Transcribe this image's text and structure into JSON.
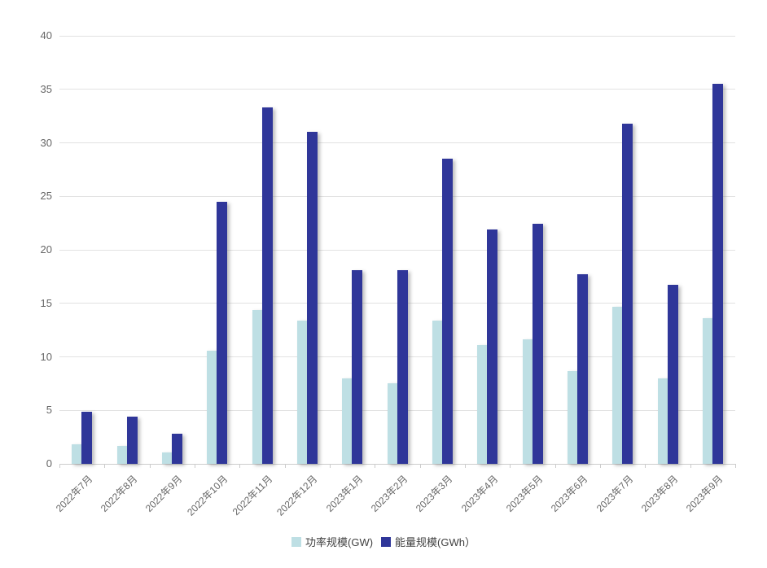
{
  "chart_data": {
    "type": "bar",
    "title": "",
    "categories": [
      "2022年7月",
      "2022年8月",
      "2022年9月",
      "2022年10月",
      "2022年11月",
      "2022年12月",
      "2023年1月",
      "2023年2月",
      "2023年3月",
      "2023年4月",
      "2023年5月",
      "2023年6月",
      "2023年7月",
      "2023年8月",
      "2023年9月"
    ],
    "series": [
      {
        "name": "功率规模(GW)",
        "color": "#bedfe4",
        "values": [
          1.8,
          1.7,
          1.1,
          10.6,
          14.4,
          13.4,
          8.0,
          7.5,
          13.4,
          11.1,
          11.6,
          8.7,
          14.7,
          8.0,
          13.6
        ]
      },
      {
        "name": "能量规模(GWh）",
        "color": "#2f3699",
        "values": [
          4.9,
          4.4,
          2.8,
          24.5,
          33.3,
          31.0,
          18.1,
          18.1,
          28.5,
          21.9,
          22.4,
          17.7,
          31.8,
          16.7,
          35.5
        ]
      }
    ],
    "xlabel": "",
    "ylabel": "",
    "ylim": [
      0,
      40
    ],
    "yticks": [
      0,
      5,
      10,
      15,
      20,
      25,
      30,
      35,
      40
    ],
    "grid": true,
    "legend_position": "bottom",
    "colors": {
      "axis_label": "#666666",
      "gridline": "#e2e2e2",
      "axis_line": "#cccccc",
      "background": "#ffffff"
    }
  }
}
